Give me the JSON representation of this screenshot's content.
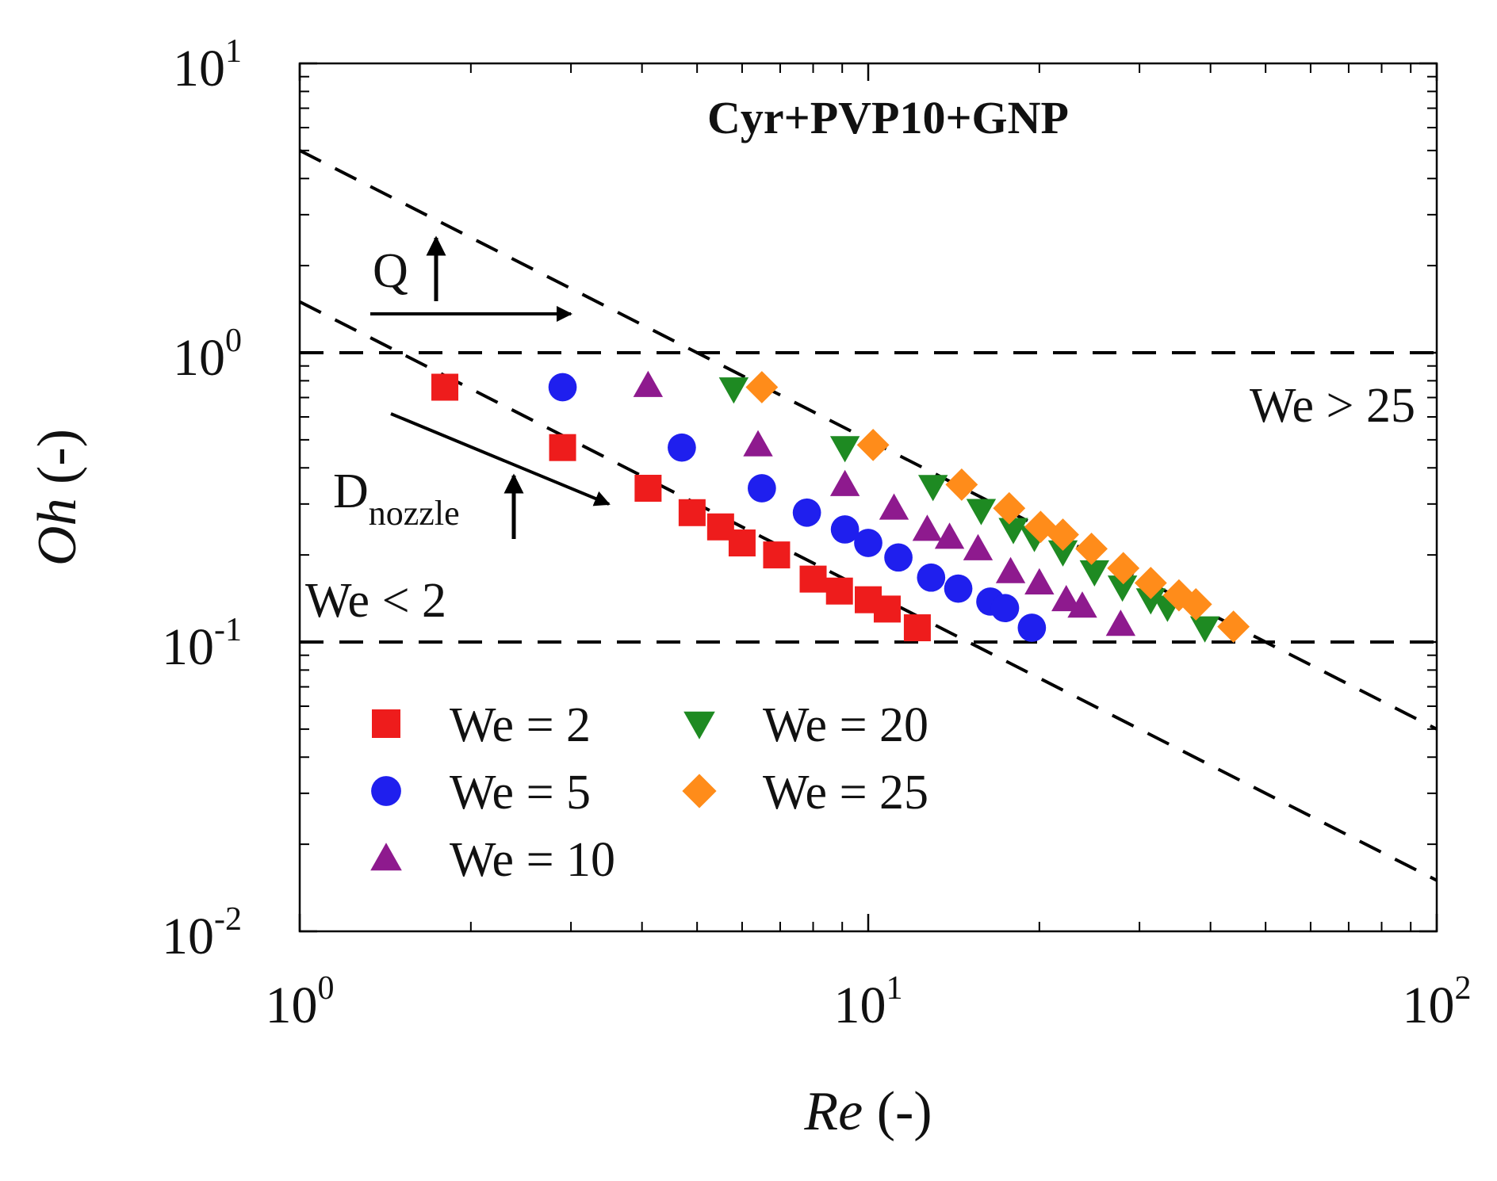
{
  "chart_data": {
    "type": "scatter",
    "title": "Cyr+PVP10+GNP",
    "xlabel": "Re",
    "xlabel_suffix": " (-)",
    "ylabel": "Oh",
    "ylabel_suffix": " (-)",
    "xscale": "log",
    "yscale": "log",
    "xlim": [
      1,
      100
    ],
    "ylim": [
      0.01,
      10
    ],
    "x_ticks": [
      {
        "value": 1,
        "base": "10",
        "exp": "0"
      },
      {
        "value": 10,
        "base": "10",
        "exp": "1"
      },
      {
        "value": 100,
        "base": "10",
        "exp": "2"
      }
    ],
    "y_ticks": [
      {
        "value": 0.01,
        "base": "10",
        "exp": "-2"
      },
      {
        "value": 0.1,
        "base": "10",
        "exp": "-1"
      },
      {
        "value": 1,
        "base": "10",
        "exp": "0"
      },
      {
        "value": 10,
        "base": "10",
        "exp": "1"
      }
    ],
    "legend_position": "bottom-left",
    "series": [
      {
        "name": "We = 2",
        "color": "#ee1c1c",
        "marker": "square",
        "points": [
          [
            1.8,
            0.76
          ],
          [
            2.9,
            0.47
          ],
          [
            4.1,
            0.34
          ],
          [
            4.9,
            0.28
          ],
          [
            5.5,
            0.25
          ],
          [
            6.0,
            0.22
          ],
          [
            6.9,
            0.2
          ],
          [
            8.0,
            0.165
          ],
          [
            8.9,
            0.15
          ],
          [
            10.0,
            0.14
          ],
          [
            10.8,
            0.13
          ],
          [
            12.2,
            0.112
          ]
        ]
      },
      {
        "name": "We = 5",
        "color": "#1f1fee",
        "marker": "circle",
        "points": [
          [
            2.9,
            0.76
          ],
          [
            4.7,
            0.47
          ],
          [
            6.5,
            0.34
          ],
          [
            7.8,
            0.28
          ],
          [
            9.1,
            0.245
          ],
          [
            10.0,
            0.22
          ],
          [
            11.3,
            0.196
          ],
          [
            12.9,
            0.167
          ],
          [
            14.4,
            0.153
          ],
          [
            16.4,
            0.138
          ],
          [
            17.4,
            0.131
          ],
          [
            19.4,
            0.112
          ]
        ]
      },
      {
        "name": "We = 10",
        "color": "#8e1a8e",
        "marker": "triangle-up",
        "points": [
          [
            4.1,
            0.77
          ],
          [
            6.4,
            0.48
          ],
          [
            9.1,
            0.35
          ],
          [
            11.1,
            0.29
          ],
          [
            12.7,
            0.245
          ],
          [
            13.9,
            0.23
          ],
          [
            15.6,
            0.21
          ],
          [
            17.8,
            0.175
          ],
          [
            20.0,
            0.16
          ],
          [
            22.3,
            0.14
          ],
          [
            23.8,
            0.133
          ],
          [
            27.8,
            0.115
          ]
        ]
      },
      {
        "name": "We = 20",
        "color": "#1e8a22",
        "marker": "triangle-down",
        "points": [
          [
            5.8,
            0.75
          ],
          [
            9.1,
            0.47
          ],
          [
            13.0,
            0.345
          ],
          [
            15.8,
            0.285
          ],
          [
            18.0,
            0.245
          ],
          [
            19.6,
            0.23
          ],
          [
            22.0,
            0.205
          ],
          [
            25.0,
            0.175
          ],
          [
            28.0,
            0.155
          ],
          [
            31.4,
            0.14
          ],
          [
            33.6,
            0.132
          ],
          [
            39.1,
            0.112
          ]
        ]
      },
      {
        "name": "We = 25",
        "color": "#ff8c1a",
        "marker": "diamond",
        "points": [
          [
            6.5,
            0.76
          ],
          [
            10.2,
            0.48
          ],
          [
            14.6,
            0.35
          ],
          [
            17.7,
            0.29
          ],
          [
            20.1,
            0.25
          ],
          [
            22.0,
            0.235
          ],
          [
            24.7,
            0.21
          ],
          [
            28.1,
            0.18
          ],
          [
            31.4,
            0.16
          ],
          [
            35.2,
            0.145
          ],
          [
            37.7,
            0.135
          ],
          [
            43.9,
            0.113
          ]
        ]
      }
    ],
    "reference_lines": [
      {
        "kind": "horizontal",
        "y": 1,
        "label": "We > 25"
      },
      {
        "kind": "horizontal",
        "y": 0.1,
        "label": "We < 2"
      },
      {
        "kind": "diagonal",
        "points": [
          [
            1,
            5
          ],
          [
            100,
            0.05
          ]
        ]
      },
      {
        "kind": "diagonal",
        "points": [
          [
            1,
            1.5
          ],
          [
            100,
            0.015
          ]
        ]
      }
    ],
    "annotations": [
      {
        "id": "q",
        "text": "Q",
        "subscript": ""
      },
      {
        "id": "dnozzle",
        "text": "D",
        "subscript": "nozzle"
      }
    ]
  }
}
